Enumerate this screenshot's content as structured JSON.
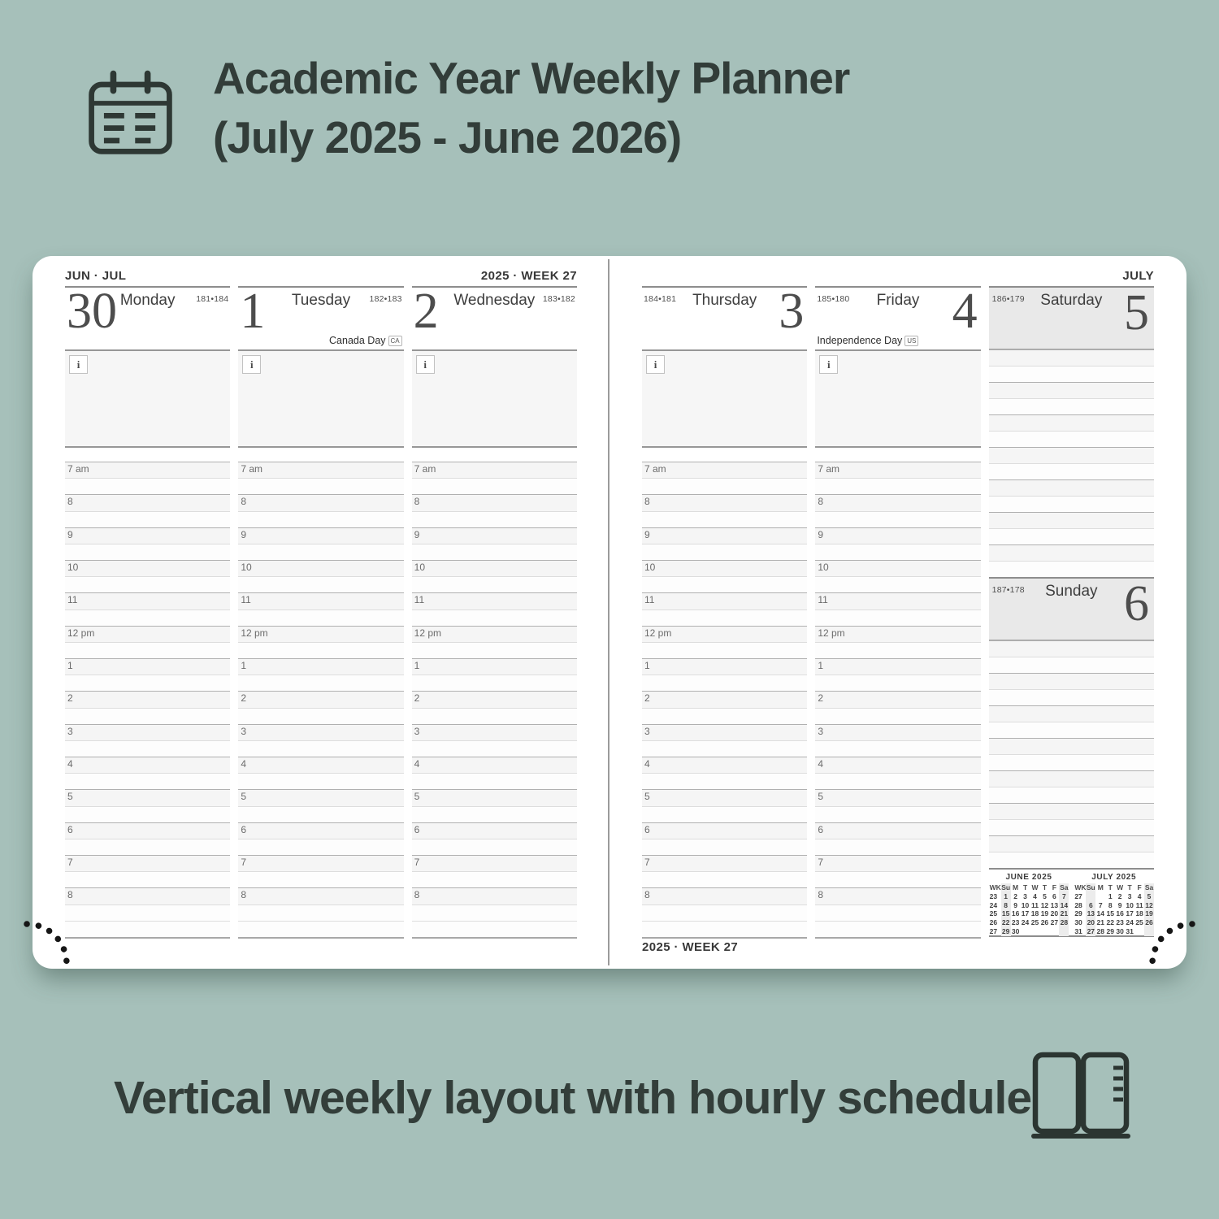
{
  "header": {
    "title_line1": "Academic Year Weekly Planner",
    "title_line2": "(July 2025 - June 2026)",
    "icon": "notepad-calendar-icon"
  },
  "footer": {
    "tagline": "Vertical weekly layout with hourly schedule",
    "icon": "open-planner-icon"
  },
  "colors": {
    "background": "#a6c0ba",
    "card": "#ffffff",
    "ink": "#333e3a",
    "line_dark": "#8d8d8d",
    "line_mid": "#b0b0b0",
    "line_light": "#dddddd",
    "panel": "#f6f6f6",
    "weekend_header": "#e9e9e9",
    "weekend_band": "#ececec"
  },
  "planner": {
    "left_page": {
      "month_label": "JUN · JUL",
      "week_label": "2025 · WEEK 27"
    },
    "right_page": {
      "month_label": "JULY",
      "week_label": "2025 · WEEK 27"
    },
    "info_marker": "i",
    "hours": [
      "7 am",
      "8",
      "9",
      "10",
      "11",
      "12 pm",
      "1",
      "2",
      "3",
      "4",
      "5",
      "6",
      "7",
      "8"
    ],
    "days": [
      {
        "name": "Monday",
        "date": "30",
        "day_of_year": "181•184",
        "holiday": "",
        "holiday_badge": ""
      },
      {
        "name": "Tuesday",
        "date": "1",
        "day_of_year": "182•183",
        "holiday": "Canada Day",
        "holiday_badge": "CA"
      },
      {
        "name": "Wednesday",
        "date": "2",
        "day_of_year": "183•182",
        "holiday": "",
        "holiday_badge": ""
      },
      {
        "name": "Thursday",
        "date": "3",
        "day_of_year": "184•181",
        "holiday": "",
        "holiday_badge": ""
      },
      {
        "name": "Friday",
        "date": "4",
        "day_of_year": "185•180",
        "holiday": "Independence Day",
        "holiday_badge": "US"
      },
      {
        "name": "Saturday",
        "date": "5",
        "day_of_year": "186•179",
        "holiday": "",
        "holiday_badge": ""
      },
      {
        "name": "Sunday",
        "date": "6",
        "day_of_year": "187•178",
        "holiday": "",
        "holiday_badge": ""
      }
    ],
    "mini_calendars": [
      {
        "title": "JUNE 2025",
        "day_headers": [
          "WK",
          "Su",
          "M",
          "T",
          "W",
          "T",
          "F",
          "Sa"
        ],
        "weeks": [
          [
            "23",
            "1",
            "2",
            "3",
            "4",
            "5",
            "6",
            "7"
          ],
          [
            "24",
            "8",
            "9",
            "10",
            "11",
            "12",
            "13",
            "14"
          ],
          [
            "25",
            "15",
            "16",
            "17",
            "18",
            "19",
            "20",
            "21"
          ],
          [
            "26",
            "22",
            "23",
            "24",
            "25",
            "26",
            "27",
            "28"
          ],
          [
            "27",
            "29",
            "30",
            "",
            "",
            "",
            "",
            ""
          ]
        ]
      },
      {
        "title": "JULY 2025",
        "day_headers": [
          "WK",
          "Su",
          "M",
          "T",
          "W",
          "T",
          "F",
          "Sa"
        ],
        "weeks": [
          [
            "27",
            "",
            "",
            "1",
            "2",
            "3",
            "4",
            "5"
          ],
          [
            "28",
            "6",
            "7",
            "8",
            "9",
            "10",
            "11",
            "12"
          ],
          [
            "29",
            "13",
            "14",
            "15",
            "16",
            "17",
            "18",
            "19"
          ],
          [
            "30",
            "20",
            "21",
            "22",
            "23",
            "24",
            "25",
            "26"
          ],
          [
            "31",
            "27",
            "28",
            "29",
            "30",
            "31",
            "",
            ""
          ]
        ]
      }
    ]
  }
}
